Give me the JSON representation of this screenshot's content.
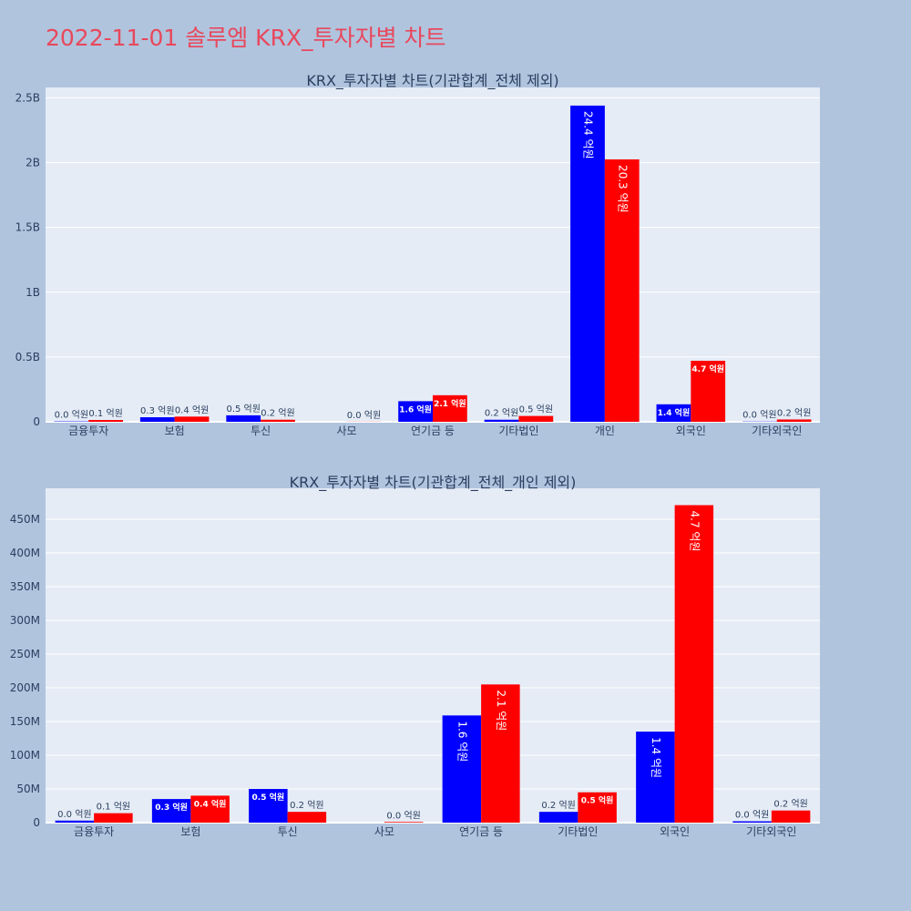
{
  "page": {
    "title": "2022-11-01 솔루엠 KRX_투자자별 차트"
  },
  "colors": {
    "background": "#b0c4de",
    "plot_bg": "#e5ecf6",
    "title": "#e8485c",
    "series_1": "#0000ff",
    "series_2": "#ff0000"
  },
  "chart_data": [
    {
      "type": "bar",
      "title": "KRX_투자자별 차트(기관합계_전체 제외)",
      "categories": [
        "금융투자",
        "보험",
        "투신",
        "사모",
        "연기금 등",
        "기타법인",
        "개인",
        "외국인",
        "기타외국인"
      ],
      "y_ticks": [
        {
          "value": 0,
          "label": "0"
        },
        {
          "value": 500000000,
          "label": "0.5B"
        },
        {
          "value": 1000000000,
          "label": "1B"
        },
        {
          "value": 1500000000,
          "label": "1.5B"
        },
        {
          "value": 2000000000,
          "label": "2B"
        },
        {
          "value": 2500000000,
          "label": "2.5B"
        }
      ],
      "ylim": [
        0,
        2580000000
      ],
      "grid": true,
      "series": [
        {
          "values": [
            3000000,
            35000000,
            50000000,
            0,
            159000000,
            16000000,
            2440000000,
            135000000,
            2000000
          ],
          "labels": [
            "0.0 억원",
            "0.3 억원",
            "0.5 억원",
            "",
            "1.6 억원",
            "0.2 억원",
            "24.4 억원",
            "1.4 억원",
            "0.0 억원"
          ]
        },
        {
          "values": [
            14000000,
            40000000,
            16000000,
            1000000,
            205000000,
            45000000,
            2025000000,
            471000000,
            18000000
          ],
          "labels": [
            "0.1 억원",
            "0.4 억원",
            "0.2 억원",
            "0.0 억원",
            "2.1 억원",
            "0.5 억원",
            "20.3 억원",
            "4.7 억원",
            "0.2 억원"
          ]
        }
      ]
    },
    {
      "type": "bar",
      "title": "KRX_투자자별 차트(기관합계_전체_개인 제외)",
      "categories": [
        "금융투자",
        "보험",
        "투신",
        "사모",
        "연기금 등",
        "기타법인",
        "외국인",
        "기타외국인"
      ],
      "y_ticks": [
        {
          "value": 0,
          "label": "0"
        },
        {
          "value": 50000000,
          "label": "50M"
        },
        {
          "value": 100000000,
          "label": "100M"
        },
        {
          "value": 150000000,
          "label": "150M"
        },
        {
          "value": 200000000,
          "label": "200M"
        },
        {
          "value": 250000000,
          "label": "250M"
        },
        {
          "value": 300000000,
          "label": "300M"
        },
        {
          "value": 350000000,
          "label": "350M"
        },
        {
          "value": 400000000,
          "label": "400M"
        },
        {
          "value": 450000000,
          "label": "450M"
        }
      ],
      "ylim": [
        0,
        496000000
      ],
      "grid": true,
      "series": [
        {
          "values": [
            3000000,
            35000000,
            50000000,
            0,
            159000000,
            16000000,
            135000000,
            2000000
          ],
          "labels": [
            "0.0 억원",
            "0.3 억원",
            "0.5 억원",
            "",
            "1.6 억원",
            "0.2 억원",
            "1.4 억원",
            "0.0 억원"
          ]
        },
        {
          "values": [
            14000000,
            40000000,
            16000000,
            1000000,
            205000000,
            45000000,
            471000000,
            18000000
          ],
          "labels": [
            "0.1 억원",
            "0.4 억원",
            "0.2 억원",
            "0.0 억원",
            "2.1 억원",
            "0.5 억원",
            "4.7 억원",
            "0.2 억원"
          ]
        }
      ]
    }
  ]
}
